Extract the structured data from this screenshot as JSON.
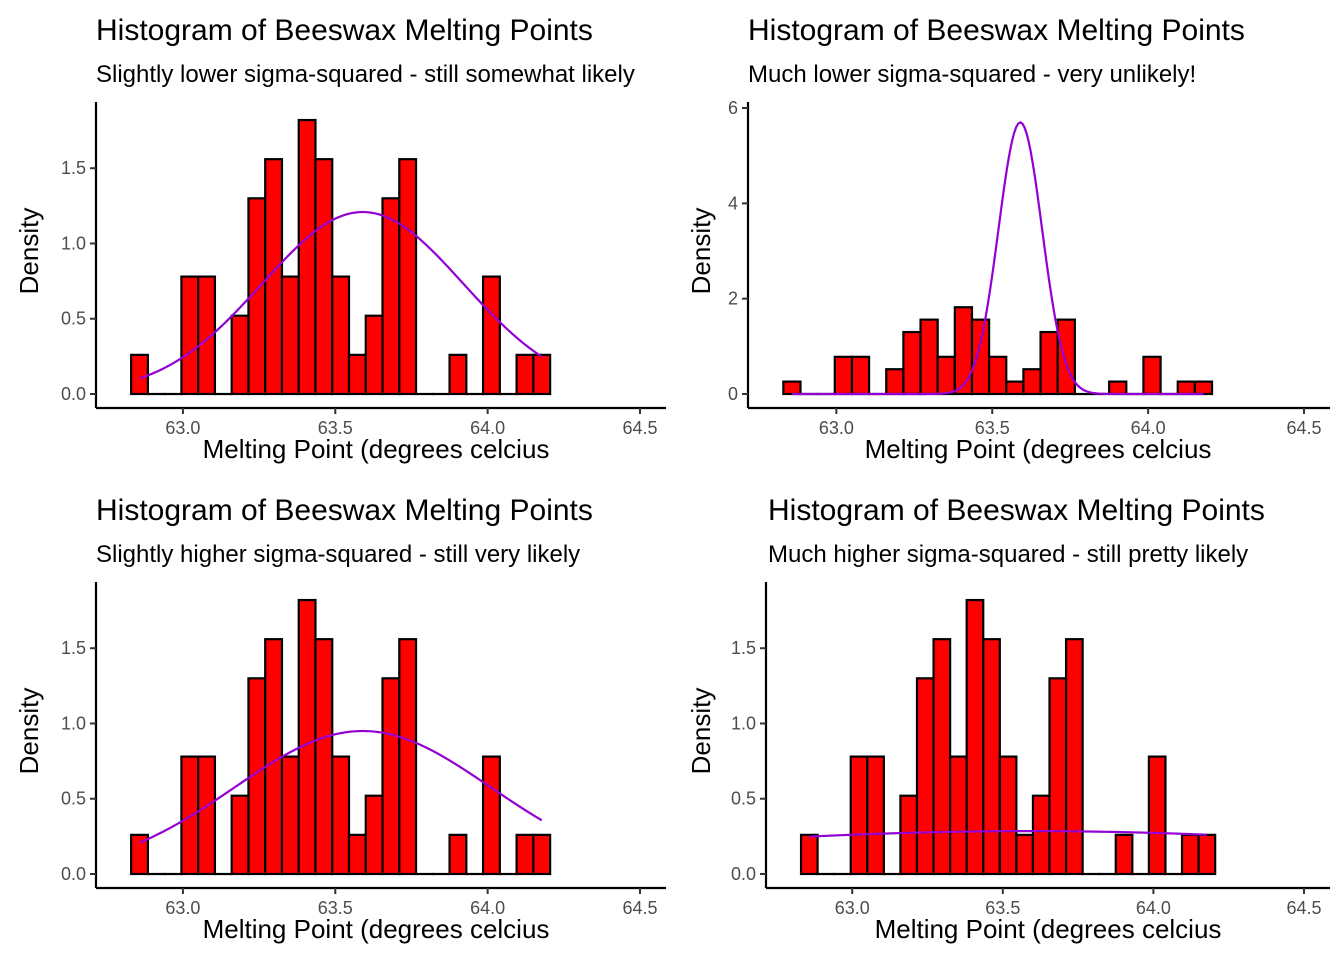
{
  "chart_data": [
    {
      "type": "bar",
      "title": "Histogram of Beeswax Melting Points",
      "subtitle": "Slightly lower sigma-squared - still somewhat likely",
      "xlabel": "Melting Point (degrees celcius",
      "ylabel": "Density",
      "xlim": [
        62.8,
        64.5
      ],
      "ylim": [
        0,
        1.9
      ],
      "xticks": [
        "63.0",
        "63.5",
        "64.0",
        "64.5"
      ],
      "yticks": [
        "0.0",
        "0.5",
        "1.0",
        "1.5"
      ],
      "bin_width": 0.055,
      "bin_start": 62.83,
      "values": [
        0.26,
        0,
        0,
        0.78,
        0.78,
        0,
        0.52,
        1.3,
        1.56,
        0.78,
        1.82,
        1.56,
        0.78,
        0.26,
        0.52,
        1.3,
        1.56,
        0,
        0,
        0.26,
        0,
        0.78,
        0,
        0.26,
        0.26
      ],
      "curve": {
        "mean": 63.59,
        "sd": 0.33,
        "color": "#9400d3"
      },
      "bar_color": "#ff0000",
      "grid": false
    },
    {
      "type": "bar",
      "title": "Histogram of Beeswax Melting Points",
      "subtitle": "Much lower sigma-squared - very unlikely!",
      "xlabel": "Melting Point (degrees celcius",
      "ylabel": "Density",
      "xlim": [
        62.8,
        64.5
      ],
      "ylim": [
        0,
        6
      ],
      "xticks": [
        "63.0",
        "63.5",
        "64.0",
        "64.5"
      ],
      "yticks": [
        "0",
        "2",
        "4",
        "6"
      ],
      "bin_width": 0.055,
      "bin_start": 62.83,
      "values": [
        0.26,
        0,
        0,
        0.78,
        0.78,
        0,
        0.52,
        1.3,
        1.56,
        0.78,
        1.82,
        1.56,
        0.78,
        0.26,
        0.52,
        1.3,
        1.56,
        0,
        0,
        0.26,
        0,
        0.78,
        0,
        0.26,
        0.26
      ],
      "curve": {
        "mean": 63.59,
        "sd": 0.07,
        "color": "#9400d3"
      },
      "bar_color": "#ff0000",
      "grid": false
    },
    {
      "type": "bar",
      "title": "Histogram of Beeswax Melting Points",
      "subtitle": "Slightly higher sigma-squared - still very likely",
      "xlabel": "Melting Point (degrees celcius",
      "ylabel": "Density",
      "xlim": [
        62.8,
        64.5
      ],
      "ylim": [
        0,
        1.9
      ],
      "xticks": [
        "63.0",
        "63.5",
        "64.0",
        "64.5"
      ],
      "yticks": [
        "0.0",
        "0.5",
        "1.0",
        "1.5"
      ],
      "bin_width": 0.055,
      "bin_start": 62.83,
      "values": [
        0.26,
        0,
        0,
        0.78,
        0.78,
        0,
        0.52,
        1.3,
        1.56,
        0.78,
        1.82,
        1.56,
        0.78,
        0.26,
        0.52,
        1.3,
        1.56,
        0,
        0,
        0.26,
        0,
        0.78,
        0,
        0.26,
        0.26
      ],
      "curve": {
        "mean": 63.59,
        "sd": 0.42,
        "color": "#9400d3"
      },
      "bar_color": "#ff0000",
      "grid": false
    },
    {
      "type": "bar",
      "title": "Histogram of Beeswax Melting Points",
      "subtitle": "Much higher sigma-squared - still pretty likely",
      "xlabel": "Melting Point (degrees celcius",
      "ylabel": "Density",
      "xlim": [
        62.8,
        64.5
      ],
      "ylim": [
        0,
        1.9
      ],
      "xticks": [
        "63.0",
        "63.5",
        "64.0",
        "64.5"
      ],
      "yticks": [
        "0.0",
        "0.5",
        "1.0",
        "1.5"
      ],
      "bin_width": 0.055,
      "bin_start": 62.83,
      "values": [
        0.26,
        0,
        0,
        0.78,
        0.78,
        0,
        0.52,
        1.3,
        1.56,
        0.78,
        1.82,
        1.56,
        0.78,
        0.26,
        0.52,
        1.3,
        1.56,
        0,
        0,
        0.26,
        0,
        0.78,
        0,
        0.26,
        0.26
      ],
      "curve": {
        "mean": 63.59,
        "sd": 1.4,
        "color": "#9400d3"
      },
      "bar_color": "#ff0000",
      "grid": false
    }
  ]
}
